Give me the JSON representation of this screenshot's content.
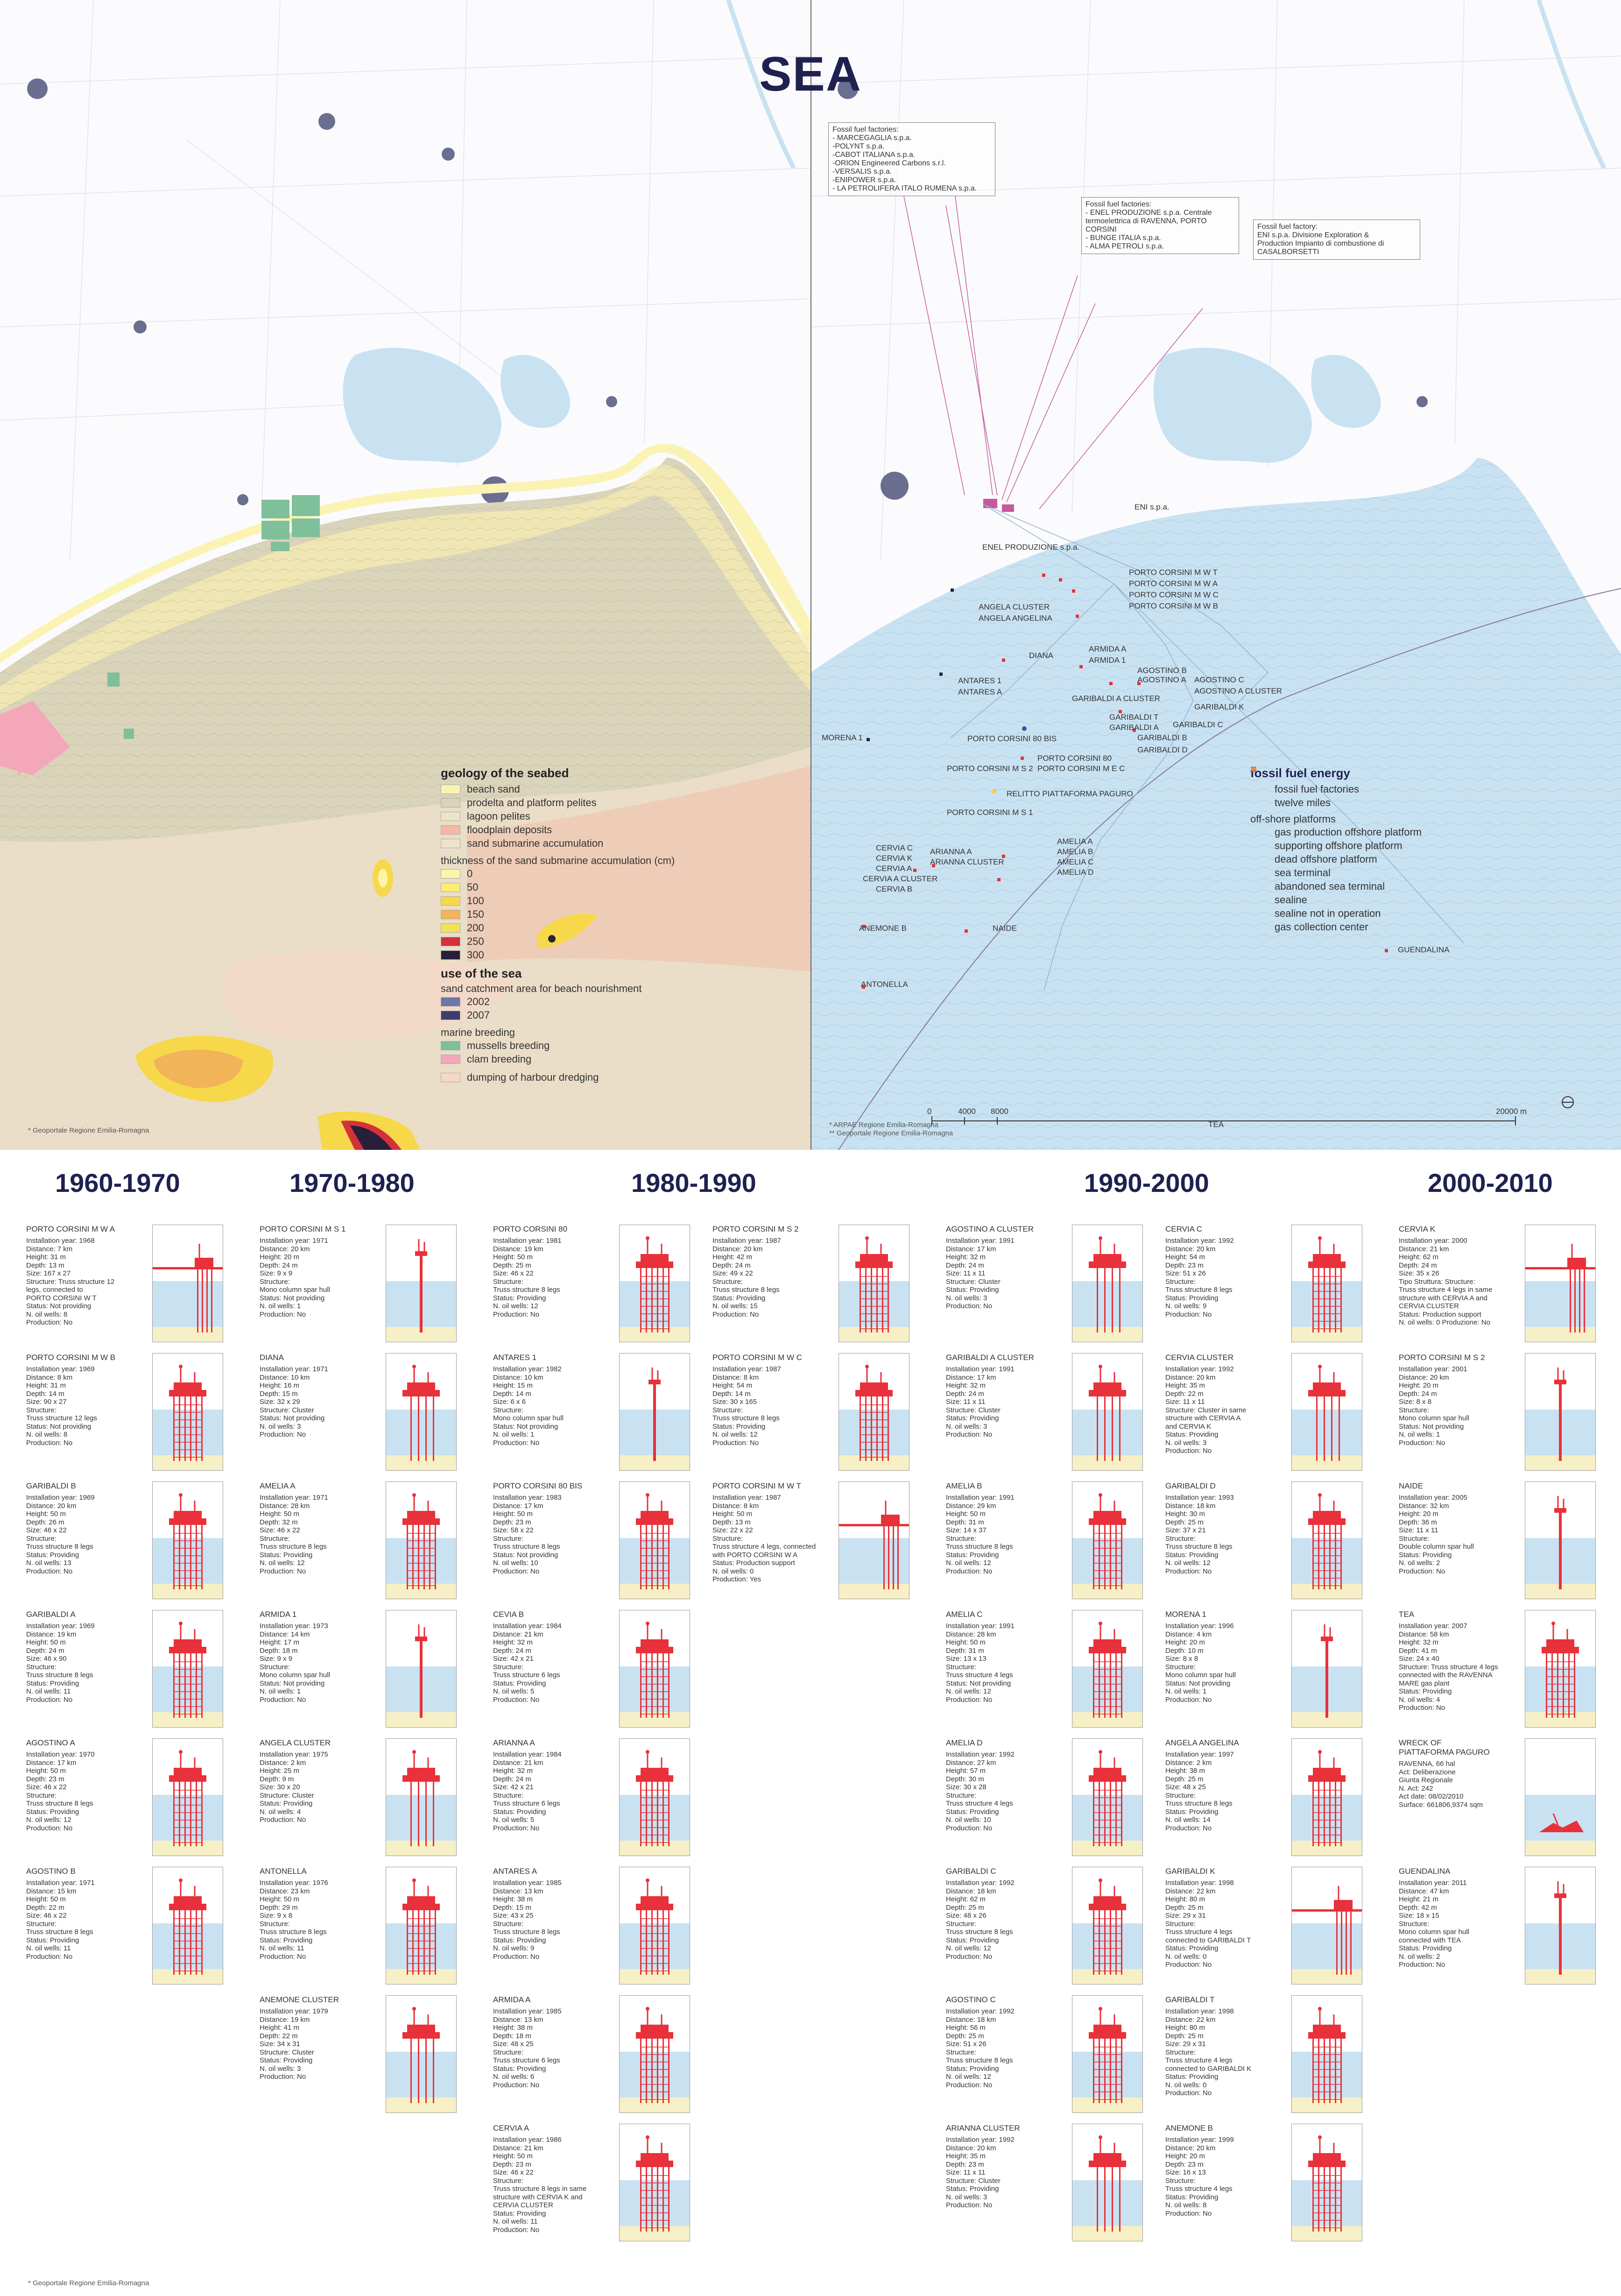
{
  "title": "SEA",
  "left_legend": {
    "geology_heading": "geology of the seabed",
    "geology": [
      {
        "label": "beach sand",
        "color": "#faf3b3"
      },
      {
        "label": "prodelta and platform pelites",
        "color": "#d9d4ba"
      },
      {
        "label": "lagoon pelites",
        "color": "#ece4c8"
      },
      {
        "label": "floodplain deposits",
        "color": "#f4b8a4"
      },
      {
        "label": "sand submarine accumulation",
        "color": "#efe2cc"
      }
    ],
    "thickness_heading": "thickness of the sand submarine accumulation (cm)",
    "thickness": [
      {
        "label": "0",
        "color": "#fbf6a5"
      },
      {
        "label": "50",
        "color": "#f9ee72"
      },
      {
        "label": "100",
        "color": "#f6d84a"
      },
      {
        "label": "150",
        "color": "#f1b458"
      },
      {
        "label": "200",
        "color": "#f2e15a"
      },
      {
        "label": "250",
        "color": "#d4323a"
      },
      {
        "label": "300",
        "color": "#2a1f3a"
      }
    ],
    "use_heading": "use of the sea",
    "sand_catchment": "sand catchment area for beach nourishment",
    "catchment": [
      {
        "label": "2002",
        "color": "#6f77a8"
      },
      {
        "label": "2007",
        "color": "#3a3f6b"
      }
    ],
    "marine_breeding_heading": "marine breeding",
    "breeding": [
      {
        "label": "mussells breeding",
        "color": "#7fbf9a"
      },
      {
        "label": "clam breeding",
        "color": "#f4a7b9"
      }
    ],
    "dumping": {
      "label": "dumping of harbour dredging",
      "color": "#f7d7c8"
    }
  },
  "left_source": "* Geoportale Regione Emilia-Romagna",
  "right_source": "* ARPAE Regione Emilia-Romagna\n** Geoportale Regione Emilia-Romagna",
  "fact_boxes": [
    "Fossil fuel factories:\n- MARCEGAGLIA s.p.a.\n-POLYNT s.p.a.\n-CABOT ITALIANA s.p.a.\n-ORION Engineered Carbons s.r.l.\n-VERSALIS s.p.a.\n-ENIPOWER s.p.a.\n- LA PETROLIFERA ITALO RUMENA s.p.a.",
    "Fossil fuel factories:\n- ENEL PRODUZIONE s.p.a. Centrale\ntermoelettrica di RAVENNA, PORTO\nCORSINI\n- BUNGE ITALIA s.p.a.\n- ALMA PETROLI s.p.a.",
    "Fossil fuel factory:\nENI s.p.a. Divisione Exploration &\nProduction Impianto di combustione di\nCASALBORSETTI"
  ],
  "map_labels": {
    "eni": "ENI s.p.a.",
    "enel": "ENEL PRODUZIONE s.p.a.",
    "platforms": [
      "PORTO CORSINI M W T",
      "PORTO CORSINI M W A",
      "PORTO CORSINI M W C",
      "PORTO CORSINI M W B",
      "ANGELA CLUSTER",
      "ANGELA ANGELINA",
      "DIANA",
      "ARMIDA A",
      "ARMIDA 1",
      "AGOSTINO B",
      "AGOSTINO C",
      "AGOSTINO A",
      "AGOSTINO A CLUSTER",
      "ANTARES 1",
      "ANTARES A",
      "GARIBALDI A CLUSTER",
      "GARIBALDI K",
      "GARIBALDI T",
      "GARIBALDI A",
      "GARIBALDI C",
      "GARIBALDI B",
      "GARIBALDI D",
      "MORENA 1",
      "PORTO CORSINI 80 BIS",
      "PORTO CORSINI 80",
      "PORTO CORSINI M S 2",
      "PORTO CORSINI M E C",
      "RELITTO PIATTAFORMA PAGURO",
      "PORTO CORSINI M S 1",
      "CERVIA C",
      "CERVIA K",
      "CERVIA A",
      "CERVIA A CLUSTER",
      "CERVIA B",
      "ARIANNA A",
      "ARIANNA CLUSTER",
      "AMELIA A",
      "AMELIA B",
      "AMELIA C",
      "AMELIA D",
      "ANEMONE B",
      "NAIDE",
      "ANTONELLA",
      "GUENDALINA",
      "TEA"
    ]
  },
  "right_legend": {
    "heading": "fossil fuel energy",
    "lines": [
      {
        "label": "fossil fuel factories",
        "color": "#c45a9c"
      },
      {
        "label": "twelve miles",
        "color": "#8a73a8"
      }
    ],
    "offshore_heading": "off-shore platforms",
    "items": [
      {
        "label": "gas production offshore platform",
        "color": "#e8313a"
      },
      {
        "label": "supporting offshore platform",
        "color": "#f6d255"
      },
      {
        "label": "dead offshore platform",
        "color": "#1f2150"
      },
      {
        "label": "sea terminal",
        "color": "#2c5aa0"
      },
      {
        "label": "abandoned sea terminal",
        "color": "#ffffff"
      },
      {
        "label": "sealine",
        "color": "#9ab7d3"
      },
      {
        "label": "sealine not in operation",
        "color": "#c5d4e3"
      },
      {
        "label": "gas collection center",
        "color": "#e88a4a"
      }
    ]
  },
  "scale": {
    "labels": [
      "0",
      "4000",
      "8000",
      "20000 m"
    ]
  },
  "colors": {
    "sea": "#c9e2f2",
    "seabed": "#d9d4ba",
    "accent": "#e8313a",
    "title": "#1f2150"
  },
  "decades": [
    "1960-1970",
    "1970-1980",
    "1980-1990",
    "1990-2000",
    "2000-2010"
  ],
  "platforms": [
    {
      "name": "PORTO CORSINI M W A",
      "text": "Installation year: 1968\nDistance: 7  km\nHeight: 31 m\nDepth: 13 m\nSize: 167 x 27\nStructure: Truss structure 12\nlegs, connected to\nPORTO CORSINI W T\nStatus: Not providing\nN. oil wells: 8\nProduction: No",
      "type": "wide"
    },
    {
      "name": "PORTO CORSINI M W B",
      "text": "Installation year: 1969\nDistance: 8 km\nHeight: 31 m\nDepth: 14 m\nSize: 90 x 27\nStructure:\nTruss structure 12 legs\nStatus: Not providing\nN. oil wells: 8\nProduction: No",
      "type": "truss"
    },
    {
      "name": "GARIBALDI B",
      "text": "Installation year: 1969\nDistance: 20  km\nHeight: 50 m\nDepth: 26 m\nSize: 46 x 22\nStructure:\nTruss structure 8 legs\nStatus: Providing\nN. oil wells: 13\nProduction: No",
      "type": "truss"
    },
    {
      "name": "GARIBALDI A",
      "text": "Installation year: 1969\nDistance: 19  km\nHeight: 50 m\nDepth: 24 m\nSize: 46 x 90\nStructure:\nTruss structure 8 legs\nStatus: Providing\nN. oil wells: 11\nProduction: No",
      "type": "truss"
    },
    {
      "name": "AGOSTINO A",
      "text": "Installation year: 1970\nDistance: 17 km\nHeight: 50 m\nDepth: 23 m\nSize: 46 x 22\nStructure:\nTruss structure 8 legs\nStatus: Providing\nN. oil wells: 12\nProduction: No",
      "type": "truss"
    },
    {
      "name": "AGOSTINO B",
      "text": "Installation year: 1971\nDistance: 15 km\nHeight: 50 m\nDepth: 22 m\nSize: 46 x 22\nStructure:\nTruss structure 8 legs\nStatus: Providing\nN. oil wells: 11\nProduction: No",
      "type": "truss"
    },
    {
      "name": "PORTO CORSINI M S 1",
      "text": "Installation year: 1971\nDistance: 20 km\nHeight: 20 m\nDepth: 24 m\nSize: 9 x 9\nStructure:\nMono column spar hull\nStatus: Not providing\nN. oil wells: 1\nProduction: No",
      "type": "mono"
    },
    {
      "name": "DIANA",
      "text": "Installation year: 1971\nDistance: 10 km\nHeight: 16 m\nDepth: 15 m\nSize: 32 x 29\nStructure: Cluster\nStatus: Not providing\nN. oil wells: 3\nProduction: No",
      "type": "cluster"
    },
    {
      "name": "AMELIA A",
      "text": "Installation year: 1971\nDistance: 28 km\nHeight: 50 m\nDepth: 32 m\nSize: 46 x 22\nStructure:\nTruss structure 8 legs\nStatus: Providing\nN. oil wells: 12\nProduction: No",
      "type": "truss"
    },
    {
      "name": "ARMIDA 1",
      "text": "Installation year: 1973\nDistance: 14 km\nHeight: 17 m\nDepth: 18 m\nSize: 9 x 9\nStructure:\nMono column spar hull\nStatus: Not providing\nN. oil wells: 1\nProduction: No",
      "type": "mono"
    },
    {
      "name": "ANGELA CLUSTER",
      "text": "Installation year: 1975\nDistance: 2 km\nHeight: 25 m\nDepth: 9 m\nSize: 30 x 20\nStructure: Cluster\nStatus: Providing\nN. oil wells: 4\nProduction: No",
      "type": "cluster"
    },
    {
      "name": "ANTONELLA",
      "text": "Installation year: 1976\nDistance: 23 km\nHeight: 50 m\nDepth: 29 m\nSize: 9 x 8\nStructure:\nTruss structure 8 legs\nStatus: Providing\nN. oil wells: 11\nProduction: No",
      "type": "truss"
    },
    {
      "name": "ANEMONE CLUSTER",
      "text": "Installation year: 1979\nDistance: 19 km\nHeight: 41 m\nDepth: 22 m\nSize: 34 x 31\nStructure: Cluster\nStatus: Providing\nN. oil wells: 3\nProduction: No",
      "type": "cluster"
    },
    {
      "name": "PORTO CORSINI 80",
      "text": "Installation year: 1981\nDistance: 19 km\nHeight: 50 m\nDepth: 25 m\nSize: 46 x 22\nStructure:\nTruss structure 8 legs\nStatus: Providing\nN. oil wells: 12\nProduction: No",
      "type": "truss"
    },
    {
      "name": "ANTARES 1",
      "text": "Installation year: 1982\nDistance: 10 km\nHeight: 15 m\nDepth: 14 m\nSize: 6 x 6\nStructure:\nMono column spar hull\nStatus: Not providing\nN. oil wells: 1\nProduction: No",
      "type": "mono"
    },
    {
      "name": "PORTO CORSINI 80 BIS",
      "text": "Installation year: 1983\nDistance: 17 km\nHeight: 50 m\nDepth: 23 m\nSize: 58 x 22\nStructure:\nTruss structure 8 legs\nStatus: Not providing\nN. oil wells: 10\nProduction: No",
      "type": "truss"
    },
    {
      "name": "CEVIA B",
      "text": "Installation year: 1984\nDistance: 21 km\nHeight: 32 m\nDepth: 24 m\nSize: 42 x 21\nStructure:\nTruss structure 6 legs\nStatus: Providing\nN. oil wells: 5\nProduction: No",
      "type": "truss"
    },
    {
      "name": "ARIANNA A",
      "text": "Installation year: 1984\nDistance: 21 km\nHeight: 32 m\nDepth: 24 m\nSize: 42 x 21\nStructure:\nTruss structure 6 legs\nStatus: Providing\nN. oil wells: 5\nProduction: No",
      "type": "truss"
    },
    {
      "name": "ANTARES A",
      "text": "Installation year: 1985\nDistance: 13 km\nHeight: 38 m\nDepth: 15 m\nSize: 43 x 25\nStructure:\nTruss structure 8 legs\nStatus: Providing\nN. oil wells: 9\nProduction: No",
      "type": "truss"
    },
    {
      "name": "ARMIDA A",
      "text": "Installation year: 1985\nDistance: 13 km\nHeight: 38 m\nDepth: 18 m\nSize: 48 x 25\nStructure:\nTruss structure 6 legs\nStatus: Providing\nN. oil wells: 6\nProduction: No",
      "type": "truss"
    },
    {
      "name": "CERVIA A",
      "text": "Installation year: 1986\nDistance: 21 km\nHeight: 50 m\nDepth: 23  m\nSize: 46 x 22\nStructure:\nTruss structure 8 legs in same\nstructure with CERVIA K and\nCERVIA CLUSTER\nStatus: Providing\nN. oil wells: 11\nProduction: No",
      "type": "truss"
    },
    {
      "name": "PORTO CORSINI M S 2",
      "text": "Installation year: 1987\nDistance: 20 km\nHeight: 42 m\nDepth: 24 m\nSize: 49 x 22\nStructure:\nTruss structure 8 legs\nStatus: Providing\nN. oil wells: 15\nProduction: No",
      "type": "truss"
    },
    {
      "name": "PORTO CORSINI M W C",
      "text": "Installation year: 1987\nDistance: 8 km\nHeight: 54 m\nDepth: 14 m\nSize: 30 x 165\nStructure:\nTruss structure 8 legs\nStatus: Providing\nN. oil wells: 12\nProduction: No",
      "type": "truss"
    },
    {
      "name": "PORTO CORSINI M W T",
      "text": "Installation year: 1987\nDistance: 8 km\nHeight: 50 m\nDepth: 13 m\nSize: 22 x 22\nStructure:\nTruss structure 4 legs, connected\nwith PORTO CORSINI W A\nStatus: Production support\nN. oil wells: 0\nProduction: Yes",
      "type": "wide"
    },
    {
      "name": "AGOSTINO A CLUSTER",
      "text": "Installation year: 1991\nDistance: 17 km\nHeight: 32 m\nDepth: 24 m\nSize: 11 x 11\nStructure: Cluster\nStatus: Providing\nN. oil wells: 3\nProduction: No",
      "type": "cluster"
    },
    {
      "name": "GARIBALDI A CLUSTER",
      "text": "Installation year: 1991\nDistance: 17 km\nHeight: 32 m\nDepth: 24 m\nSize: 11 x 11\nStructure: Cluster\nStatus: Providing\nN. oil wells: 3\nProduction: No",
      "type": "cluster"
    },
    {
      "name": "AMELIA B",
      "text": "Installation year: 1991\nDistance: 29 km\nHeight: 50 m\nDepth: 31 m\nSize: 14 x 37\nStructure:\nTruss structure 8 legs\nStatus: Providing\nN. oil wells: 12\nProduction: No",
      "type": "truss"
    },
    {
      "name": "AMELIA  C",
      "text": "Installation year: 1991\nDistance: 28 km\nHeight: 50 m\nDepth: 31 m\nSize: 13 x 13\nStructure:\nTruss structure 4 legs\nStatus: Not providing\nN. oil wells: 12\nProduction: No",
      "type": "truss"
    },
    {
      "name": "AMELIA  D",
      "text": "Installation year: 1992\nDistance: 27 km\nHeight: 57 m\nDepth: 30 m\nSize: 30 x 28\nStructure:\nTruss structure 4 legs\nStatus: Providing\nN. oil wells: 10\nProduction: No",
      "type": "truss"
    },
    {
      "name": "GARIBALDI C",
      "text": "Installation year: 1992\nDistance: 18 km\nHeight: 62 m\nDepth: 25 m\nSize: 48 x 26\nStructure:\nTruss structure 8 legs\nStatus: Providing\nN. oil wells: 12\nProduction: No",
      "type": "truss"
    },
    {
      "name": "AGOSTINO C",
      "text": "Installation year: 1992\nDistance: 18 km\nHeight: 56 m\nDepth: 25 m\nSize: 51 x 26\nStructure:\nTruss structure 8 legs\nStatus: Providing\nN. oil wells: 12\nProduction: No",
      "type": "truss"
    },
    {
      "name": "ARIANNA CLUSTER",
      "text": "Installation year: 1992\nDistance: 20 km\nHeight: 35 m\nDepth: 23 m\nSize: 11 x 11\nStructure: Cluster\nStatus: Providing\nN. oil wells: 3\nProduction: No",
      "type": "cluster"
    },
    {
      "name": "CERVIA C",
      "text": "Installation year: 1992\nDistance: 20 km\nHeight: 54 m\nDepth: 23 m\nSize: 51 x 26\nStructure:\nTruss structure 8 legs\nStatus: Providing\nN. oil wells: 9\nProduction: No",
      "type": "truss"
    },
    {
      "name": "CERVIA CLUSTER",
      "text": "Installation year: 1992\nDistance: 20 km\nHeight: 35 m\nDepth: 22 m\nSize: 11 x 11\nStructure: Cluster in same\nstructure with CERVIA A\nand CERVIA K\nStatus: Providing\nN. oil wells: 3\nProduction: No",
      "type": "cluster"
    },
    {
      "name": "GARIBALDI D",
      "text": "Installation year: 1993\nDistance: 18 km\nHeight: 30 m\nDepth: 25 m\nSize: 37 x 21\nStructure:\nTruss structure 8 legs\nStatus: Providing\nN. oil wells: 12\nProduction: No",
      "type": "truss"
    },
    {
      "name": "MORENA 1",
      "text": "Installation year: 1996\nDistance: 4 km\nHeight: 20 m\nDepth: 10 m\nSize: 8 x 8\nStructure:\nMono column spar hull\nStatus: Not providing\nN. oil wells: 1\nProduction: No",
      "type": "mono"
    },
    {
      "name": "ANGELA ANGELINA",
      "text": "Installation year: 1997\nDistance: 2 km\nHeight: 38 m\nDepth: 25 m\nSize: 48 x 25\nStructure:\nTruss structure 8 legs\nStatus: Providing\nN. oil wells: 14\nProduction: No",
      "type": "truss"
    },
    {
      "name": "GARIBALDI K",
      "text": "Installation year: 1998\nDistance: 22 km\nHeight: 80 m\nDepth: 25 m\nSize: 29 x 31\nStructure:\nTruss structure 4 legs\nconnected to GARIBALDI T\nStatus: Providing\nN. oil wells: 0\nProduction: No",
      "type": "wide"
    },
    {
      "name": "GARIBALDI T",
      "text": "Installation year: 1998\nDistance: 22 km\nHeight: 80 m\nDepth: 25 m\nSize: 29 x 31\nStructure:\nTruss structure 4 legs\nconnected to GARIBALDI K\nStatus: Providing\nN. oil wells: 0\nProduction: No",
      "type": "truss"
    },
    {
      "name": "ANEMONE B",
      "text": "Installation year: 1999\nDistance: 20 km\nHeight: 20 m\nDepth: 23 m\nSize: 16 x 13\nStructure:\nTruss structure 4 legs\nStatus: Providing\nN. oil wells: 8\nProduction: No",
      "type": "truss"
    },
    {
      "name": "CERVIA K",
      "text": "Installation year: 2000\nDistance: 21 km\nHeight: 62 m\nDepth: 24 m\nSize: 35 x 26\nTipo Struttura: Structure:\nTruss structure 4 legs in same\nstructure with CERVIA A and\nCERVIA CLUSTER\nStatus: Production support\nN. oil wells: 0 Produzione: No",
      "type": "wide"
    },
    {
      "name": "PORTO CORSINI M S 2",
      "text": "Installation year: 2001\nDistance: 20 km\nHeight: 20 m\nDepth: 24 m\nSize: 8 x 8\nStructure:\nMono column spar hull\nStatus: Not providing\nN. oil wells: 1\nProduction: No",
      "type": "mono"
    },
    {
      "name": "NAIDE",
      "text": "Installation year: 2005\nDistance: 32 km\nHeight: 20 m\nDepth: 36 m\nSize: 11 x 11\nStructure:\nDouble column spar hull\nStatus: Providing\nN. oil wells: 2\nProduction: No",
      "type": "mono"
    },
    {
      "name": "TEA",
      "text": "Installation year: 2007\nDistance: 58 km\nHeight: 32 m\nDepth: 41 m\nSize: 24 x 40\nStructure: Truss structure 4 legs\nconnected with the RAVENNA\nMARE gas plant\nStatus: Providing\nN. oil wells: 4\nProduction: No",
      "type": "truss"
    },
    {
      "name": "WRECK OF\nPIATTAFORMA PAGURO",
      "text": "RAVENNA, 66 hal\nAct: Deliberazione\nGiunta Regionale\nN. Act: 242\nAct date: 08/02/2010\nSurface: 661806,9374 sqm",
      "type": "wreck"
    },
    {
      "name": "GUENDALINA",
      "text": "Installation year: 2011\nDistance: 47 km\nHeight: 21 m\nDepth: 42 m\nSize: 18 x 15\nStructure:\nMono column spar hull\nconnected with TEA\nStatus: Providing\nN. oil wells: 2\nProduction: No",
      "type": "mono"
    }
  ],
  "footnote": "* Geoportale Regione Emilia-Romagna"
}
